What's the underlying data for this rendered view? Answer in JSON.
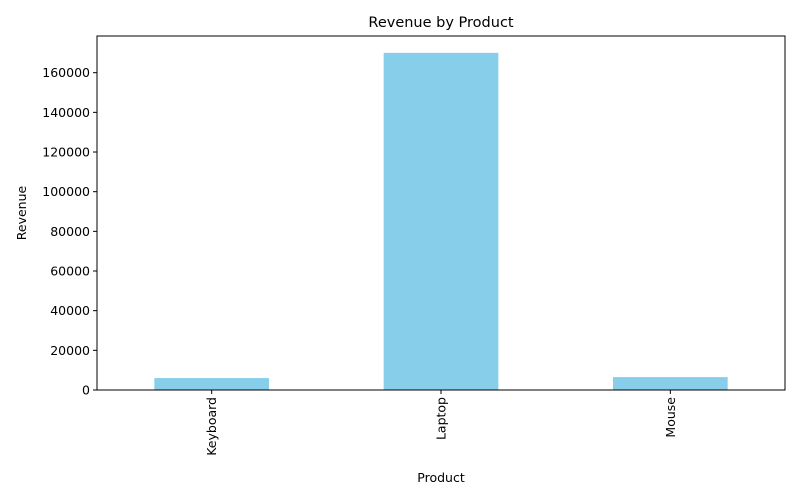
{
  "chart_data": {
    "type": "bar",
    "title": "Revenue by Product",
    "xlabel": "Product",
    "ylabel": "Revenue",
    "categories": [
      "Keyboard",
      "Laptop",
      "Mouse"
    ],
    "values": [
      6000,
      170000,
      6500
    ],
    "ylim": [
      0,
      178500
    ],
    "yticks": [
      0,
      20000,
      40000,
      60000,
      80000,
      100000,
      120000,
      140000,
      160000
    ],
    "ytick_labels": [
      "0",
      "20000",
      "40000",
      "60000",
      "80000",
      "100000",
      "120000",
      "140000",
      "160000"
    ],
    "bar_color": "#87ceeb",
    "grid": false,
    "legend": "none",
    "xtick_rotation": "vertical"
  }
}
